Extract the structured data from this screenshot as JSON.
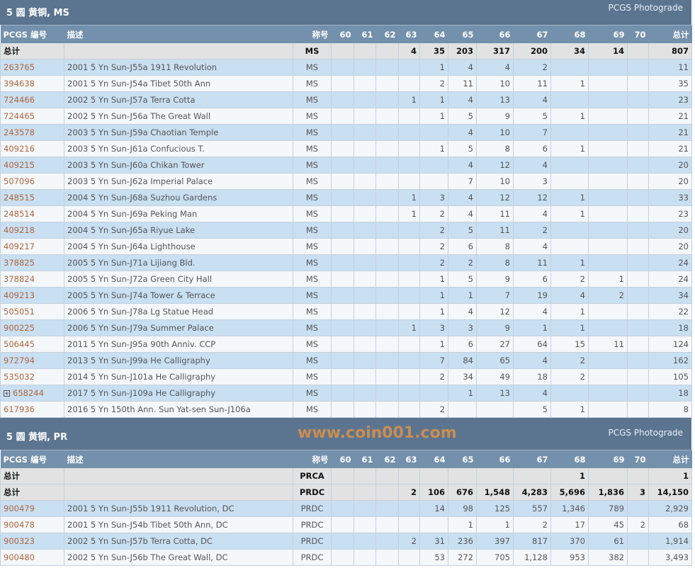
{
  "sections": [
    {
      "title": "5 圆 黄铜, MS",
      "link": "PCGS Photograde",
      "headers": [
        "PCGS 编号",
        "描述",
        "称号",
        "60",
        "61",
        "62",
        "63",
        "64",
        "65",
        "66",
        "67",
        "68",
        "69",
        "70",
        "总计"
      ],
      "totals": [
        {
          "label": "总计",
          "desig": "MS",
          "grades": [
            "",
            "",
            "",
            "4",
            "35",
            "203",
            "317",
            "200",
            "34",
            "14",
            ""
          ],
          "total": "807"
        }
      ],
      "rows": [
        {
          "id": "263765",
          "desc": "2001 5 Yn Sun-J55a 1911 Revolution",
          "desig": "MS",
          "grades": [
            "",
            "",
            "",
            "",
            "1",
            "4",
            "4",
            "2",
            "",
            "",
            ""
          ],
          "total": "11"
        },
        {
          "id": "394638",
          "desc": "2001 5 Yn Sun-J54a Tibet 50th Ann",
          "desig": "MS",
          "grades": [
            "",
            "",
            "",
            "",
            "2",
            "11",
            "10",
            "11",
            "1",
            "",
            ""
          ],
          "total": "35"
        },
        {
          "id": "724466",
          "desc": "2002 5 Yn Sun-J57a Terra Cotta",
          "desig": "MS",
          "grades": [
            "",
            "",
            "",
            "1",
            "1",
            "4",
            "13",
            "4",
            "",
            "",
            ""
          ],
          "total": "23"
        },
        {
          "id": "724465",
          "desc": "2002 5 Yn Sun-J56a The Great Wall",
          "desig": "MS",
          "grades": [
            "",
            "",
            "",
            "",
            "1",
            "5",
            "9",
            "5",
            "1",
            "",
            ""
          ],
          "total": "21"
        },
        {
          "id": "243578",
          "desc": "2003 5 Yn Sun-J59a Chaotian Temple",
          "desig": "MS",
          "grades": [
            "",
            "",
            "",
            "",
            "",
            "4",
            "10",
            "7",
            "",
            "",
            ""
          ],
          "total": "21"
        },
        {
          "id": "409216",
          "desc": "2003 5 Yn Sun-J61a Confucious T.",
          "desig": "MS",
          "grades": [
            "",
            "",
            "",
            "",
            "1",
            "5",
            "8",
            "6",
            "1",
            "",
            ""
          ],
          "total": "21"
        },
        {
          "id": "409215",
          "desc": "2003 5 Yn Sun-J60a Chikan Tower",
          "desig": "MS",
          "grades": [
            "",
            "",
            "",
            "",
            "",
            "4",
            "12",
            "4",
            "",
            "",
            ""
          ],
          "total": "20"
        },
        {
          "id": "507096",
          "desc": "2003 5 Yn Sun-J62a Imperial Palace",
          "desig": "MS",
          "grades": [
            "",
            "",
            "",
            "",
            "",
            "7",
            "10",
            "3",
            "",
            "",
            ""
          ],
          "total": "20"
        },
        {
          "id": "248515",
          "desc": "2004 5 Yn Sun-J68a Suzhou Gardens",
          "desig": "MS",
          "grades": [
            "",
            "",
            "",
            "1",
            "3",
            "4",
            "12",
            "12",
            "1",
            "",
            ""
          ],
          "total": "33"
        },
        {
          "id": "248514",
          "desc": "2004 5 Yn Sun-J69a Peking Man",
          "desig": "MS",
          "grades": [
            "",
            "",
            "",
            "1",
            "2",
            "4",
            "11",
            "4",
            "1",
            "",
            ""
          ],
          "total": "23"
        },
        {
          "id": "409218",
          "desc": "2004 5 Yn Sun-J65a Riyue Lake",
          "desig": "MS",
          "grades": [
            "",
            "",
            "",
            "",
            "2",
            "5",
            "11",
            "2",
            "",
            "",
            ""
          ],
          "total": "20"
        },
        {
          "id": "409217",
          "desc": "2004 5 Yn Sun-J64a Lighthouse",
          "desig": "MS",
          "grades": [
            "",
            "",
            "",
            "",
            "2",
            "6",
            "8",
            "4",
            "",
            "",
            ""
          ],
          "total": "20"
        },
        {
          "id": "378825",
          "desc": "2005 5 Yn Sun-J71a Lijiang Bld.",
          "desig": "MS",
          "grades": [
            "",
            "",
            "",
            "",
            "2",
            "2",
            "8",
            "11",
            "1",
            "",
            ""
          ],
          "total": "24"
        },
        {
          "id": "378824",
          "desc": "2005 5 Yn Sun-J72a Green City Hall",
          "desig": "MS",
          "grades": [
            "",
            "",
            "",
            "",
            "1",
            "5",
            "9",
            "6",
            "2",
            "1",
            ""
          ],
          "total": "24"
        },
        {
          "id": "409213",
          "desc": "2005 5 Yn Sun-J74a Tower & Terrace",
          "desig": "MS",
          "grades": [
            "",
            "",
            "",
            "",
            "1",
            "1",
            "7",
            "19",
            "4",
            "2",
            ""
          ],
          "total": "34"
        },
        {
          "id": "505051",
          "desc": "2006 5 Yn Sun-J78a Lg Statue Head",
          "desig": "MS",
          "grades": [
            "",
            "",
            "",
            "",
            "1",
            "4",
            "12",
            "4",
            "1",
            "",
            ""
          ],
          "total": "22"
        },
        {
          "id": "900225",
          "desc": "2006 5 Yn Sun-J79a Summer Palace",
          "desig": "MS",
          "grades": [
            "",
            "",
            "",
            "1",
            "3",
            "3",
            "9",
            "1",
            "1",
            "",
            ""
          ],
          "total": "18"
        },
        {
          "id": "506445",
          "desc": "2011 5 Yn Sun-J95a 90th Anniv. CCP",
          "desig": "MS",
          "grades": [
            "",
            "",
            "",
            "",
            "1",
            "6",
            "27",
            "64",
            "15",
            "11",
            ""
          ],
          "total": "124"
        },
        {
          "id": "972794",
          "desc": "2013 5 Yn Sun-J99a He Calligraphy",
          "desig": "MS",
          "grades": [
            "",
            "",
            "",
            "",
            "7",
            "84",
            "65",
            "4",
            "2",
            "",
            ""
          ],
          "total": "162"
        },
        {
          "id": "535032",
          "desc": "2014 5 Yn Sun-J101a He Calligraphy",
          "desig": "MS",
          "grades": [
            "",
            "",
            "",
            "",
            "2",
            "34",
            "49",
            "18",
            "2",
            "",
            ""
          ],
          "total": "105"
        },
        {
          "id": "658244",
          "expand": true,
          "desc": "2017 5 Yn Sun-J109a He Calligraphy",
          "desig": "MS",
          "grades": [
            "",
            "",
            "",
            "",
            "",
            "1",
            "13",
            "4",
            "",
            "",
            ""
          ],
          "total": "18"
        },
        {
          "id": "617936",
          "desc": "2016 5 Yn 150th Ann. Sun Yat-sen Sun-J106a",
          "desig": "MS",
          "grades": [
            "",
            "",
            "",
            "",
            "2",
            "",
            "",
            "5",
            "1",
            "",
            ""
          ],
          "total": "8"
        }
      ]
    },
    {
      "title": "5 圆 黄铜, PR",
      "link": "PCGS Photograde",
      "headers": [
        "PCGS 编号",
        "描述",
        "称号",
        "60",
        "61",
        "62",
        "63",
        "64",
        "65",
        "66",
        "67",
        "68",
        "69",
        "70",
        "总计"
      ],
      "totals": [
        {
          "label": "总计",
          "desig": "PRCA",
          "grades": [
            "",
            "",
            "",
            "",
            "",
            "",
            "",
            "",
            "1",
            "",
            ""
          ],
          "total": "1"
        },
        {
          "label": "总计",
          "desig": "PRDC",
          "grades": [
            "",
            "",
            "",
            "2",
            "106",
            "676",
            "1,548",
            "4,283",
            "5,696",
            "1,836",
            "3"
          ],
          "total": "14,150"
        }
      ],
      "rows": [
        {
          "id": "900479",
          "desc": "2001 5 Yn Sun-J55b 1911 Revolution, DC",
          "desig": "PRDC",
          "grades": [
            "",
            "",
            "",
            "",
            "14",
            "98",
            "125",
            "557",
            "1,346",
            "789",
            ""
          ],
          "total": "2,929"
        },
        {
          "id": "900478",
          "desc": "2001 5 Yn Sun-J54b Tibet 50th Ann, DC",
          "desig": "PRDC",
          "grades": [
            "",
            "",
            "",
            "",
            "",
            "1",
            "1",
            "2",
            "17",
            "45",
            "2"
          ],
          "total": "68"
        },
        {
          "id": "900323",
          "desc": "2002 5 Yn Sun-J57b Terra Cotta, DC",
          "desig": "PRDC",
          "grades": [
            "",
            "",
            "",
            "2",
            "31",
            "236",
            "397",
            "817",
            "370",
            "61",
            ""
          ],
          "total": "1,914"
        },
        {
          "id": "900480",
          "desc": "2002 5 Yn Sun-J56b The Great Wall, DC",
          "desig": "PRDC",
          "grades": [
            "",
            "",
            "",
            "",
            "53",
            "272",
            "705",
            "1,128",
            "953",
            "382",
            ""
          ],
          "total": "3,493"
        }
      ]
    }
  ],
  "watermark": "www.coin001.com"
}
